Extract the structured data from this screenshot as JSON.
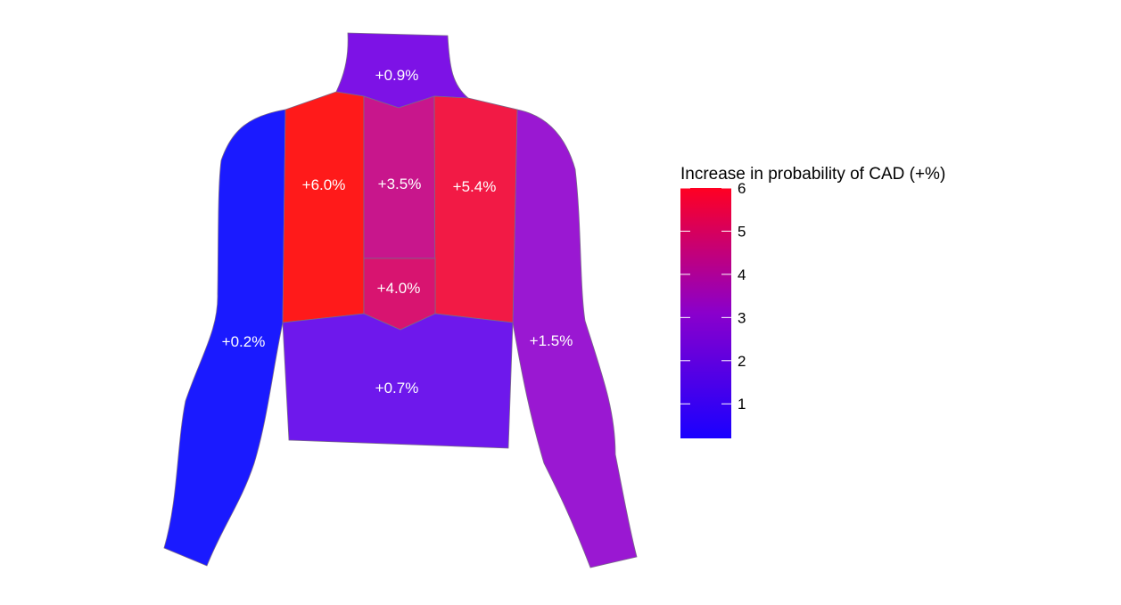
{
  "chart_data": {
    "type": "heatmap",
    "regions": [
      {
        "id": "neck",
        "label": "+0.9%",
        "value": 0.9,
        "color": "#7d12e6"
      },
      {
        "id": "right-upper-chest",
        "label": "+6.0%",
        "value": 6.0,
        "color": "#ff1a1a"
      },
      {
        "id": "upper-sternum",
        "label": "+3.5%",
        "value": 3.5,
        "color": "#c8168c"
      },
      {
        "id": "left-upper-chest",
        "label": "+5.4%",
        "value": 5.4,
        "color": "#f21a45"
      },
      {
        "id": "lower-sternum",
        "label": "+4.0%",
        "value": 4.0,
        "color": "#d81470"
      },
      {
        "id": "abdomen",
        "label": "+0.7%",
        "value": 0.7,
        "color": "#6e18ec"
      },
      {
        "id": "right-arm",
        "label": "+0.2%",
        "value": 0.2,
        "color": "#1a1aff"
      },
      {
        "id": "left-arm",
        "label": "+1.5%",
        "value": 1.5,
        "color": "#9a18d2"
      }
    ],
    "legend": {
      "title": "Increase in probability of CAD (+%)",
      "ticks": [
        1,
        2,
        3,
        4,
        5,
        6
      ],
      "range": [
        0.2,
        6.0
      ],
      "color_low": "#1a00ff",
      "color_mid": "#8a00cc",
      "color_high": "#ff0022",
      "placement": "right"
    }
  }
}
